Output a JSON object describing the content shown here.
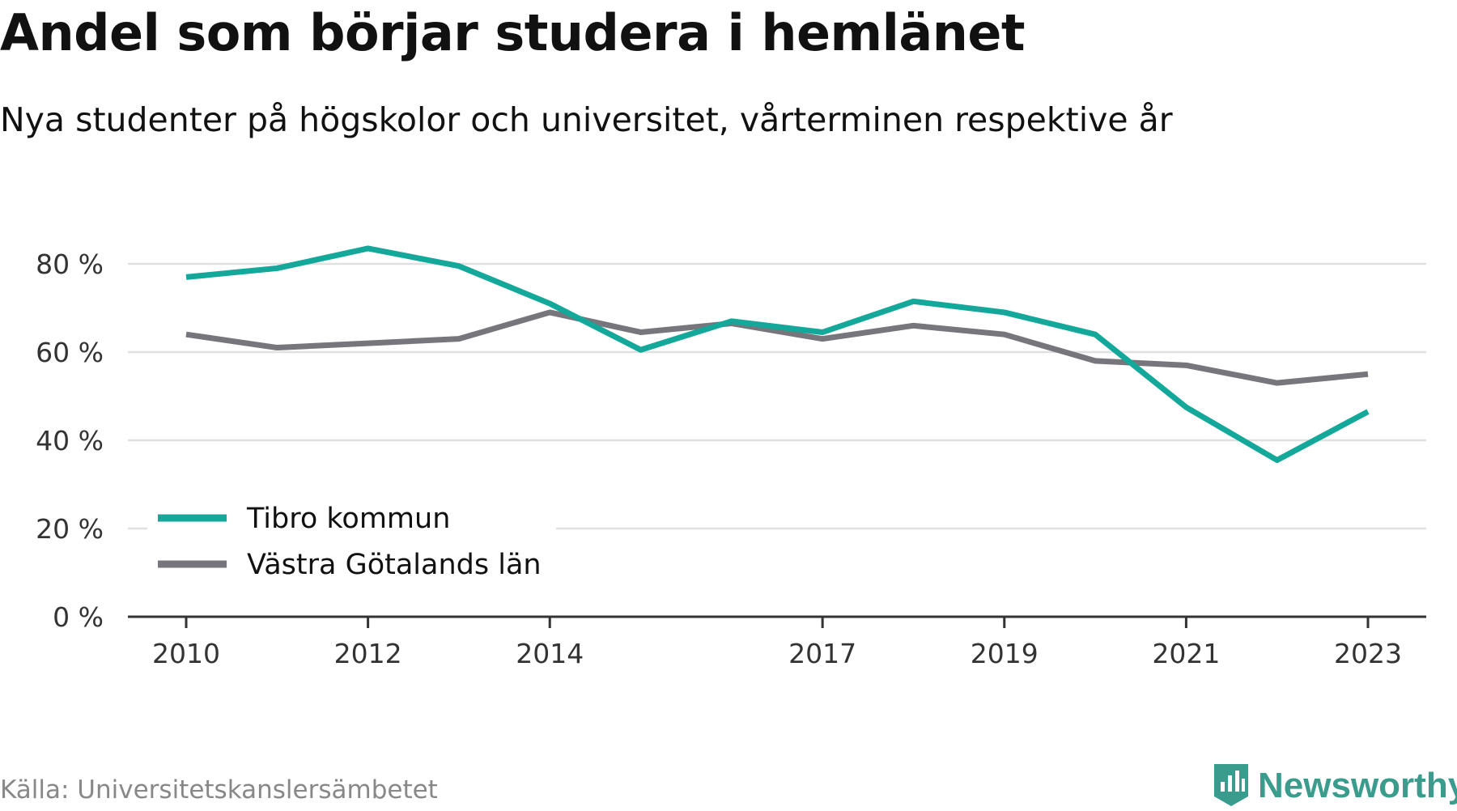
{
  "header": {
    "title": "Andel som börjar studera i hemlänet",
    "subtitle": "Nya studenter på högskolor och universitet, vårterminen respektive år"
  },
  "footer": {
    "source": "Källa: Universitetskanslersämbetet",
    "brand": "Newsworthy"
  },
  "colors": {
    "tibro": "#14a89b",
    "vg": "#76767c",
    "grid": "#e0e0e0",
    "axis": "#333333",
    "brand": "#3a9c8c"
  },
  "chart_data": {
    "type": "line",
    "title": "Andel som börjar studera i hemlänet",
    "subtitle": "Nya studenter på högskolor och universitet, vårterminen respektive år",
    "xlabel": "",
    "ylabel": "",
    "x": [
      2010,
      2011,
      2012,
      2013,
      2014,
      2015,
      2016,
      2017,
      2018,
      2019,
      2020,
      2021,
      2022,
      2023
    ],
    "x_ticks": [
      2010,
      2012,
      2014,
      2017,
      2019,
      2021,
      2023
    ],
    "x_tick_labels": [
      "2010",
      "2012",
      "2014",
      "2017",
      "2019",
      "2021",
      "2023"
    ],
    "y_ticks": [
      0,
      20,
      40,
      60,
      80
    ],
    "y_tick_labels": [
      "0 %",
      "20 %",
      "40 %",
      "60 %",
      "80 %"
    ],
    "ylim": [
      0,
      80
    ],
    "grid": true,
    "legend_position": "bottom-left",
    "series": [
      {
        "name": "Tibro kommun",
        "color": "#14a89b",
        "values": [
          77,
          79,
          83.5,
          79.5,
          71,
          60.5,
          67,
          64.5,
          71.5,
          69,
          64,
          47.5,
          35.5,
          46.5
        ]
      },
      {
        "name": "Västra Götalands län",
        "color": "#76767c",
        "values": [
          64,
          61,
          62,
          63,
          69,
          64.5,
          66.5,
          63,
          66,
          64,
          58,
          57,
          53,
          55
        ]
      }
    ]
  }
}
